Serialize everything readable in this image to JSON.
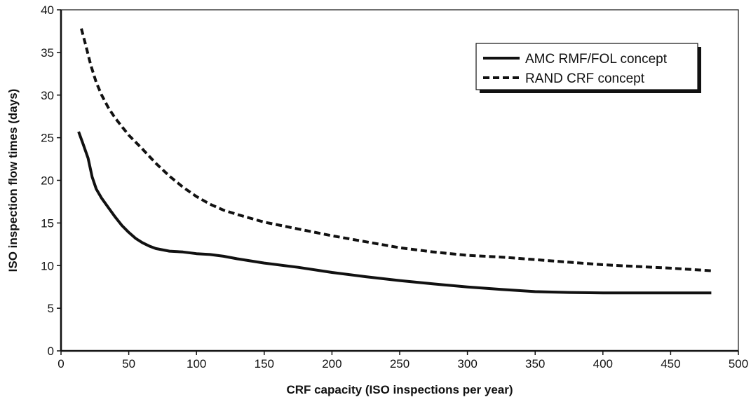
{
  "chart_data": {
    "type": "line",
    "title": "",
    "xlabel": "CRF capacity (ISO inspections per year)",
    "ylabel": "ISO inspection flow times (days)",
    "xlim": [
      0,
      500
    ],
    "ylim": [
      0,
      40
    ],
    "xticks": [
      0,
      50,
      100,
      150,
      200,
      250,
      300,
      350,
      400,
      450,
      500
    ],
    "yticks": [
      0,
      5,
      10,
      15,
      20,
      25,
      30,
      35,
      40
    ],
    "grid": false,
    "legend_position": "top-right",
    "series": [
      {
        "name": "AMC RMF/FOL concept",
        "style": "solid",
        "color": "#111111",
        "points": [
          [
            13,
            25.7
          ],
          [
            16,
            24.4
          ],
          [
            20,
            22.6
          ],
          [
            23,
            20.4
          ],
          [
            26,
            19.0
          ],
          [
            30,
            17.9
          ],
          [
            35,
            16.8
          ],
          [
            40,
            15.7
          ],
          [
            45,
            14.7
          ],
          [
            50,
            13.9
          ],
          [
            55,
            13.2
          ],
          [
            60,
            12.7
          ],
          [
            65,
            12.3
          ],
          [
            70,
            12.0
          ],
          [
            80,
            11.7
          ],
          [
            90,
            11.6
          ],
          [
            100,
            11.4
          ],
          [
            110,
            11.3
          ],
          [
            120,
            11.1
          ],
          [
            130,
            10.8
          ],
          [
            150,
            10.3
          ],
          [
            175,
            9.8
          ],
          [
            200,
            9.2
          ],
          [
            225,
            8.7
          ],
          [
            250,
            8.25
          ],
          [
            275,
            7.85
          ],
          [
            300,
            7.5
          ],
          [
            325,
            7.2
          ],
          [
            350,
            6.95
          ],
          [
            375,
            6.85
          ],
          [
            400,
            6.8
          ],
          [
            425,
            6.8
          ],
          [
            450,
            6.8
          ],
          [
            480,
            6.8
          ]
        ]
      },
      {
        "name": "RAND CRF concept",
        "style": "dashed",
        "color": "#111111",
        "points": [
          [
            15,
            37.8
          ],
          [
            18,
            36.0
          ],
          [
            22,
            33.5
          ],
          [
            26,
            31.5
          ],
          [
            30,
            30.0
          ],
          [
            35,
            28.5
          ],
          [
            40,
            27.3
          ],
          [
            45,
            26.3
          ],
          [
            50,
            25.3
          ],
          [
            60,
            23.7
          ],
          [
            70,
            22.0
          ],
          [
            80,
            20.5
          ],
          [
            90,
            19.2
          ],
          [
            100,
            18.1
          ],
          [
            110,
            17.2
          ],
          [
            120,
            16.5
          ],
          [
            130,
            16.0
          ],
          [
            150,
            15.1
          ],
          [
            175,
            14.3
          ],
          [
            200,
            13.5
          ],
          [
            225,
            12.8
          ],
          [
            250,
            12.1
          ],
          [
            275,
            11.6
          ],
          [
            300,
            11.2
          ],
          [
            325,
            11.0
          ],
          [
            350,
            10.7
          ],
          [
            375,
            10.4
          ],
          [
            400,
            10.1
          ],
          [
            425,
            9.9
          ],
          [
            450,
            9.7
          ],
          [
            480,
            9.4
          ]
        ]
      }
    ]
  }
}
